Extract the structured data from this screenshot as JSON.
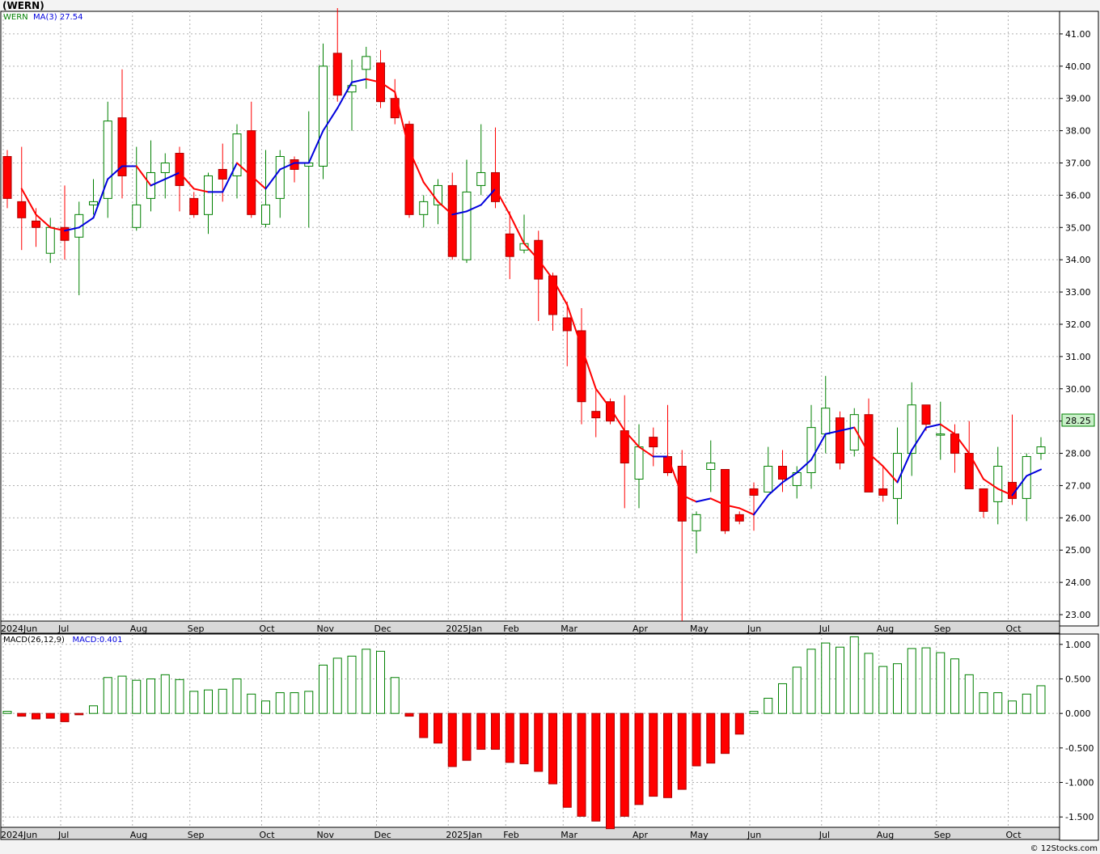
{
  "header": {
    "title": "(WERN)",
    "credit": "© 12Stocks.com"
  },
  "price_legend": {
    "symbol": "WERN",
    "ma_label": "MA(3)",
    "ma_value": "27.54"
  },
  "macd_legend": {
    "label": "MACD(26,12,9)",
    "value_text": "MACD:0.401"
  },
  "last_price_tag": "28.25",
  "colors": {
    "up": "#008000",
    "down": "#ff0000",
    "ma_up": "#0000dd",
    "ma_down": "#ff0000",
    "grid": "#b0b0b0",
    "axis_strip": "#d8d8d8",
    "price_tag_bg": "#c8f0c8"
  },
  "chart_data": [
    {
      "type": "candlestick",
      "title": "(WERN)",
      "ylim": [
        22.8,
        41.7
      ],
      "yticks": [
        "23.00",
        "24.00",
        "25.00",
        "26.00",
        "27.00",
        "28.00",
        "29.00",
        "30.00",
        "31.00",
        "32.00",
        "33.00",
        "34.00",
        "35.00",
        "36.00",
        "37.00",
        "38.00",
        "39.00",
        "40.00",
        "41.00"
      ],
      "xticks": [
        {
          "label": "2024Jun",
          "bar": 0
        },
        {
          "label": "Jul",
          "bar": 4
        },
        {
          "label": "Aug",
          "bar": 9
        },
        {
          "label": "Sep",
          "bar": 13
        },
        {
          "label": "Oct",
          "bar": 18
        },
        {
          "label": "Nov",
          "bar": 22
        },
        {
          "label": "Dec",
          "bar": 26
        },
        {
          "label": "2025Jan",
          "bar": 31
        },
        {
          "label": "Feb",
          "bar": 35
        },
        {
          "label": "Mar",
          "bar": 39
        },
        {
          "label": "Apr",
          "bar": 44
        },
        {
          "label": "May",
          "bar": 48
        },
        {
          "label": "Jun",
          "bar": 52
        },
        {
          "label": "Jul",
          "bar": 57
        },
        {
          "label": "Aug",
          "bar": 61
        },
        {
          "label": "Sep",
          "bar": 65
        },
        {
          "label": "Oct",
          "bar": 70
        }
      ],
      "candles": [
        {
          "o": 37.2,
          "h": 37.4,
          "l": 35.6,
          "c": 35.9
        },
        {
          "o": 35.8,
          "h": 37.5,
          "l": 34.3,
          "c": 35.3
        },
        {
          "o": 35.2,
          "h": 35.6,
          "l": 34.4,
          "c": 35.0
        },
        {
          "o": 34.2,
          "h": 35.3,
          "l": 33.9,
          "c": 35.0
        },
        {
          "o": 35.0,
          "h": 36.3,
          "l": 34.0,
          "c": 34.6
        },
        {
          "o": 34.7,
          "h": 35.8,
          "l": 32.9,
          "c": 35.4
        },
        {
          "o": 35.7,
          "h": 36.5,
          "l": 35.4,
          "c": 35.8
        },
        {
          "o": 35.9,
          "h": 38.9,
          "l": 35.3,
          "c": 38.3
        },
        {
          "o": 38.4,
          "h": 39.9,
          "l": 35.9,
          "c": 36.6
        },
        {
          "o": 35.0,
          "h": 37.5,
          "l": 34.9,
          "c": 35.7
        },
        {
          "o": 35.9,
          "h": 37.7,
          "l": 35.5,
          "c": 36.7
        },
        {
          "o": 36.7,
          "h": 37.3,
          "l": 35.9,
          "c": 37.0
        },
        {
          "o": 37.3,
          "h": 37.5,
          "l": 35.5,
          "c": 36.3
        },
        {
          "o": 35.9,
          "h": 36.1,
          "l": 35.3,
          "c": 35.4
        },
        {
          "o": 35.4,
          "h": 36.7,
          "l": 34.8,
          "c": 36.6
        },
        {
          "o": 36.8,
          "h": 37.6,
          "l": 35.8,
          "c": 36.5
        },
        {
          "o": 36.6,
          "h": 38.2,
          "l": 35.9,
          "c": 37.9
        },
        {
          "o": 38.0,
          "h": 38.9,
          "l": 35.3,
          "c": 35.4
        },
        {
          "o": 35.1,
          "h": 37.4,
          "l": 35.0,
          "c": 35.7
        },
        {
          "o": 35.9,
          "h": 37.4,
          "l": 35.3,
          "c": 37.2
        },
        {
          "o": 37.1,
          "h": 37.2,
          "l": 36.4,
          "c": 36.8
        },
        {
          "o": 36.9,
          "h": 38.6,
          "l": 35.0,
          "c": 37.0
        },
        {
          "o": 36.9,
          "h": 40.7,
          "l": 36.5,
          "c": 40.0
        },
        {
          "o": 40.4,
          "h": 41.8,
          "l": 38.9,
          "c": 39.1
        },
        {
          "o": 39.2,
          "h": 40.2,
          "l": 38.0,
          "c": 39.4
        },
        {
          "o": 39.9,
          "h": 40.6,
          "l": 39.3,
          "c": 40.3
        },
        {
          "o": 40.1,
          "h": 40.5,
          "l": 38.7,
          "c": 38.9
        },
        {
          "o": 39.0,
          "h": 39.6,
          "l": 38.2,
          "c": 38.4
        },
        {
          "o": 38.2,
          "h": 38.3,
          "l": 35.3,
          "c": 35.4
        },
        {
          "o": 35.4,
          "h": 36.0,
          "l": 35.0,
          "c": 35.8
        },
        {
          "o": 35.7,
          "h": 36.5,
          "l": 35.1,
          "c": 36.3
        },
        {
          "o": 36.3,
          "h": 36.7,
          "l": 34.0,
          "c": 34.1
        },
        {
          "o": 34.0,
          "h": 37.1,
          "l": 33.9,
          "c": 36.1
        },
        {
          "o": 36.3,
          "h": 38.2,
          "l": 36.0,
          "c": 36.7
        },
        {
          "o": 36.7,
          "h": 38.1,
          "l": 35.6,
          "c": 35.8
        },
        {
          "o": 34.8,
          "h": 35.5,
          "l": 33.4,
          "c": 34.1
        },
        {
          "o": 34.3,
          "h": 35.4,
          "l": 34.2,
          "c": 34.5
        },
        {
          "o": 34.6,
          "h": 34.9,
          "l": 32.1,
          "c": 33.4
        },
        {
          "o": 33.5,
          "h": 33.6,
          "l": 31.8,
          "c": 32.3
        },
        {
          "o": 32.2,
          "h": 32.7,
          "l": 30.7,
          "c": 31.8
        },
        {
          "o": 31.8,
          "h": 32.5,
          "l": 28.9,
          "c": 29.6
        },
        {
          "o": 29.3,
          "h": 30.0,
          "l": 28.5,
          "c": 29.1
        },
        {
          "o": 29.6,
          "h": 29.7,
          "l": 28.9,
          "c": 29.0
        },
        {
          "o": 28.7,
          "h": 29.8,
          "l": 26.3,
          "c": 27.7
        },
        {
          "o": 27.2,
          "h": 28.9,
          "l": 26.3,
          "c": 28.2
        },
        {
          "o": 28.5,
          "h": 28.8,
          "l": 27.6,
          "c": 28.2
        },
        {
          "o": 27.9,
          "h": 29.5,
          "l": 27.3,
          "c": 27.4
        },
        {
          "o": 27.6,
          "h": 28.1,
          "l": 22.8,
          "c": 25.9
        },
        {
          "o": 25.6,
          "h": 26.2,
          "l": 24.9,
          "c": 26.1
        },
        {
          "o": 27.5,
          "h": 28.4,
          "l": 26.8,
          "c": 27.7
        },
        {
          "o": 27.5,
          "h": 27.5,
          "l": 25.5,
          "c": 25.6
        },
        {
          "o": 26.1,
          "h": 26.2,
          "l": 25.8,
          "c": 25.9
        },
        {
          "o": 26.9,
          "h": 27.1,
          "l": 25.6,
          "c": 26.7
        },
        {
          "o": 26.8,
          "h": 28.2,
          "l": 26.9,
          "c": 27.6
        },
        {
          "o": 27.6,
          "h": 28.1,
          "l": 26.8,
          "c": 27.2
        },
        {
          "o": 27.0,
          "h": 27.6,
          "l": 26.6,
          "c": 27.4
        },
        {
          "o": 27.4,
          "h": 29.5,
          "l": 26.9,
          "c": 28.8
        },
        {
          "o": 28.6,
          "h": 30.4,
          "l": 28.0,
          "c": 29.4
        },
        {
          "o": 29.1,
          "h": 29.3,
          "l": 27.5,
          "c": 27.7
        },
        {
          "o": 28.1,
          "h": 29.4,
          "l": 27.9,
          "c": 29.2
        },
        {
          "o": 29.2,
          "h": 29.7,
          "l": 26.8,
          "c": 26.8
        },
        {
          "o": 26.9,
          "h": 27.6,
          "l": 26.5,
          "c": 26.7
        },
        {
          "o": 26.6,
          "h": 28.8,
          "l": 25.8,
          "c": 28.0
        },
        {
          "o": 28.0,
          "h": 30.2,
          "l": 27.3,
          "c": 29.5
        },
        {
          "o": 29.5,
          "h": 29.5,
          "l": 28.7,
          "c": 28.9
        },
        {
          "o": 28.6,
          "h": 29.6,
          "l": 27.8,
          "c": 28.6
        },
        {
          "o": 28.6,
          "h": 28.9,
          "l": 27.4,
          "c": 28.0
        },
        {
          "o": 28.0,
          "h": 29.0,
          "l": 26.9,
          "c": 26.9
        },
        {
          "o": 26.9,
          "h": 26.9,
          "l": 26.0,
          "c": 26.2
        },
        {
          "o": 26.5,
          "h": 28.2,
          "l": 25.8,
          "c": 27.6
        },
        {
          "o": 27.1,
          "h": 29.2,
          "l": 26.4,
          "c": 26.6
        },
        {
          "o": 26.6,
          "h": 28.0,
          "l": 25.9,
          "c": 27.9
        },
        {
          "o": 28.0,
          "h": 28.5,
          "l": 27.8,
          "c": 28.2
        }
      ],
      "ma": [
        null,
        36.2,
        35.4,
        35.0,
        34.9,
        35.0,
        35.3,
        36.5,
        36.9,
        36.9,
        36.3,
        36.5,
        36.7,
        36.2,
        36.1,
        36.1,
        37.0,
        36.6,
        36.2,
        36.8,
        37.0,
        37.0,
        38.0,
        38.7,
        39.5,
        39.6,
        39.5,
        39.2,
        37.4,
        36.4,
        35.8,
        35.4,
        35.5,
        35.7,
        36.2,
        35.4,
        34.5,
        34.0,
        33.4,
        32.6,
        31.3,
        30.0,
        29.4,
        28.7,
        28.2,
        27.9,
        27.9,
        26.7,
        26.5,
        26.6,
        26.4,
        26.3,
        26.1,
        26.7,
        27.1,
        27.4,
        27.8,
        28.6,
        28.7,
        28.8,
        28.0,
        27.6,
        27.1,
        28.1,
        28.8,
        28.9,
        28.6,
        28.0,
        27.2,
        26.9,
        26.7,
        27.3,
        27.5
      ],
      "last_price": 28.25
    },
    {
      "type": "bar",
      "title": "MACD(26,12,9)",
      "ylim": [
        -1.65,
        1.15
      ],
      "yticks": [
        "1.000",
        "0.500",
        "0.000",
        "-0.500",
        "-1.000",
        "-1.500"
      ],
      "values": [
        0.03,
        -0.04,
        -0.08,
        -0.07,
        -0.12,
        -0.02,
        0.11,
        0.52,
        0.54,
        0.48,
        0.5,
        0.56,
        0.49,
        0.32,
        0.34,
        0.35,
        0.5,
        0.28,
        0.18,
        0.3,
        0.3,
        0.32,
        0.7,
        0.8,
        0.83,
        0.93,
        0.9,
        0.52,
        -0.04,
        -0.35,
        -0.43,
        -0.77,
        -0.68,
        -0.52,
        -0.52,
        -0.71,
        -0.73,
        -0.84,
        -1.02,
        -1.36,
        -1.49,
        -1.56,
        -1.67,
        -1.49,
        -1.32,
        -1.2,
        -1.22,
        -1.1,
        -0.76,
        -0.72,
        -0.58,
        -0.3,
        0.03,
        0.22,
        0.43,
        0.67,
        0.93,
        1.02,
        0.96,
        1.11,
        0.87,
        0.68,
        0.72,
        0.94,
        0.95,
        0.88,
        0.79,
        0.56,
        0.3,
        0.3,
        0.18,
        0.28,
        0.401
      ]
    }
  ]
}
